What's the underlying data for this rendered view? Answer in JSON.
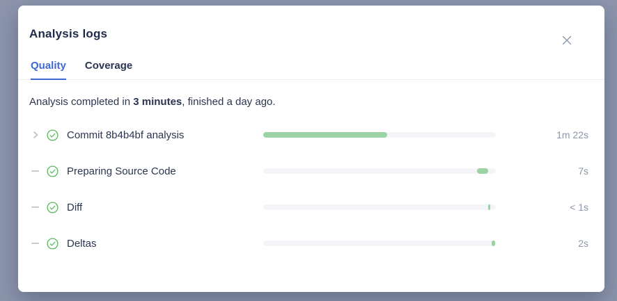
{
  "modal": {
    "title": "Analysis logs"
  },
  "tabs": [
    {
      "label": "Quality",
      "active": true
    },
    {
      "label": "Coverage",
      "active": false
    }
  ],
  "summary": {
    "text_before": "Analysis completed in ",
    "bold_text": "3 minutes",
    "text_after": ", finished a day ago."
  },
  "rows": [
    {
      "expander": "chevron-right",
      "status_icon": "check-circle",
      "label": "Commit 8b4b4bf analysis",
      "duration": "1m 22s",
      "bar": {
        "start_pct": 0,
        "width_pct": 53.3
      }
    },
    {
      "expander": "dash",
      "status_icon": "check-circle",
      "label": "Preparing Source Code",
      "duration": "7s",
      "bar": {
        "start_pct": 91.9,
        "width_pct": 4.8
      }
    },
    {
      "expander": "dash",
      "status_icon": "check-circle",
      "label": "Diff",
      "duration": "< 1s",
      "bar": {
        "start_pct": 96.8,
        "width_pct": 0.7
      }
    },
    {
      "expander": "dash",
      "status_icon": "check-circle",
      "label": "Deltas",
      "duration": "2s",
      "bar": {
        "start_pct": 98.2,
        "width_pct": 1.6
      }
    }
  ],
  "colors": {
    "accent_blue": "#3e68d6",
    "success_green": "#5bb95f",
    "bar_fill_green": "#9cd3a4",
    "bar_track": "#f3f5f9",
    "text_dark": "#2b3551",
    "text_muted": "#8d95a9",
    "overlay_background": "#8c95ac"
  }
}
